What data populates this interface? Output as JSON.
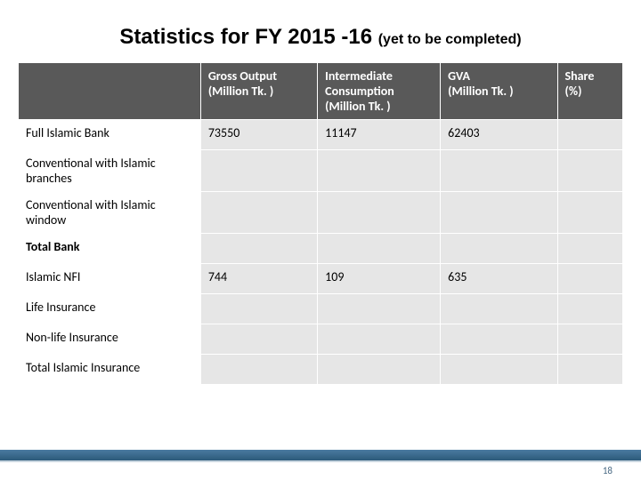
{
  "title": {
    "main": "Statistics for FY 2015 -16 ",
    "sub": "(yet to be completed)"
  },
  "table": {
    "headers": [
      {
        "key": "gross",
        "lines": [
          "Gross Output",
          "(Million Tk. )"
        ]
      },
      {
        "key": "inter",
        "lines": [
          "Intermediate",
          "Consumption",
          "(Million Tk. )"
        ]
      },
      {
        "key": "gva",
        "lines": [
          "GVA",
          "(Million Tk. )"
        ]
      },
      {
        "key": "share",
        "lines": [
          "Share",
          "(%)"
        ]
      }
    ],
    "rows": [
      {
        "label": "Full Islamic Bank",
        "bold": false,
        "tall": false,
        "cells": {
          "gross": "73550",
          "inter": "11147",
          "gva": "62403",
          "share": ""
        }
      },
      {
        "label": "Conventional with Islamic branches",
        "bold": false,
        "tall": true,
        "cells": {
          "gross": "",
          "inter": "",
          "gva": "",
          "share": ""
        }
      },
      {
        "label": "Conventional with Islamic window",
        "bold": false,
        "tall": true,
        "cells": {
          "gross": "",
          "inter": "",
          "gva": "",
          "share": ""
        }
      },
      {
        "label": "Total Bank",
        "bold": true,
        "tall": false,
        "cells": {
          "gross": "",
          "inter": "",
          "gva": "",
          "share": ""
        }
      },
      {
        "label": "Islamic NFI",
        "bold": false,
        "tall": false,
        "cells": {
          "gross": "744",
          "inter": "109",
          "gva": "635",
          "share": ""
        }
      },
      {
        "label": "Life Insurance",
        "bold": false,
        "tall": false,
        "cells": {
          "gross": "",
          "inter": "",
          "gva": "",
          "share": ""
        }
      },
      {
        "label": "Non-life Insurance",
        "bold": false,
        "tall": false,
        "cells": {
          "gross": "",
          "inter": "",
          "gva": "",
          "share": ""
        }
      },
      {
        "label": "Total Islamic Insurance",
        "bold": false,
        "tall": false,
        "cells": {
          "gross": "",
          "inter": "",
          "gva": "",
          "share": ""
        }
      }
    ]
  },
  "page_number": "18",
  "colors": {
    "header_bg": "#595959",
    "data_bg": "#e6e6e6",
    "footer_bar_from": "#2c5a7a",
    "footer_bar_to": "#4a7aa0"
  }
}
